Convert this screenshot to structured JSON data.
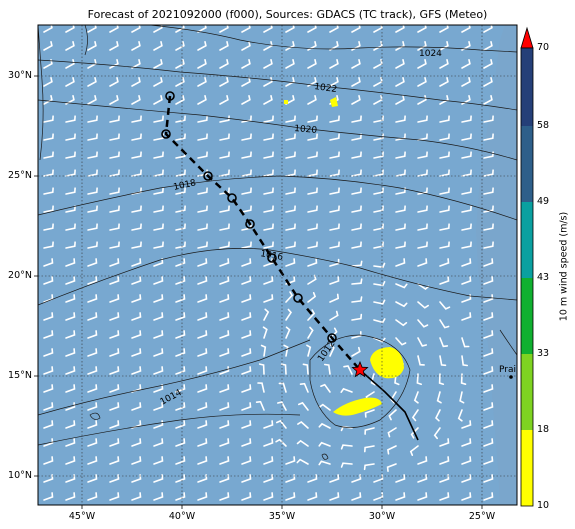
{
  "title": "Forecast of 2021092000 (f000), Sources: GDACS (TC track), GFS (Meteo)",
  "map": {
    "lat_ticks": [
      "30°N",
      "25°N",
      "20°N",
      "15°N",
      "10°N"
    ],
    "lon_ticks": [
      "45°W",
      "40°W",
      "35°W",
      "30°W",
      "25°W"
    ],
    "isobars": [
      "1024",
      "1022",
      "1020",
      "1018",
      "1016",
      "1012",
      "1014"
    ],
    "place_label": "Praia",
    "colors": {
      "ocean": "#78a8d0",
      "land": "#d8d8d8",
      "track": "#000000",
      "storm": "#ff0000",
      "high_wind": "#ffff00"
    }
  },
  "track": [
    {
      "lon": -40.6,
      "lat": 29.0
    },
    {
      "lon": -40.8,
      "lat": 27.1
    },
    {
      "lon": -38.7,
      "lat": 25.0
    },
    {
      "lon": -37.5,
      "lat": 23.9
    },
    {
      "lon": -36.6,
      "lat": 22.6
    },
    {
      "lon": -35.5,
      "lat": 20.9
    },
    {
      "lon": -34.2,
      "lat": 18.9
    },
    {
      "lon": -32.5,
      "lat": 16.9
    },
    {
      "lon": -31.1,
      "lat": 15.3
    }
  ],
  "colorbar": {
    "title": "10 m wind speed (m/s)",
    "ticks": [
      "70",
      "58",
      "49",
      "43",
      "33",
      "18",
      "10"
    ],
    "colors": [
      "#253f78",
      "#2e5f8a",
      "#0aa0a0",
      "#10b030",
      "#7ed321",
      "#ffff00"
    ]
  }
}
